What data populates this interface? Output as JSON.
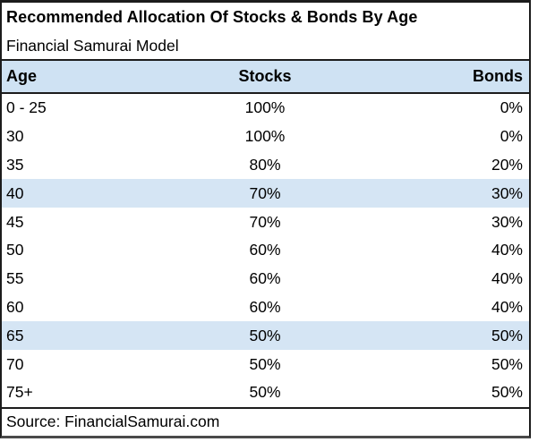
{
  "chart_data": {
    "type": "table",
    "title": "Recommended Allocation Of Stocks & Bonds By Age",
    "subtitle": "Financial Samurai Model",
    "columns": [
      "Age",
      "Stocks",
      "Bonds"
    ],
    "rows": [
      {
        "age": "0 - 25",
        "stocks": "100%",
        "bonds": "0%",
        "highlighted": false
      },
      {
        "age": "30",
        "stocks": "100%",
        "bonds": "0%",
        "highlighted": false
      },
      {
        "age": "35",
        "stocks": "80%",
        "bonds": "20%",
        "highlighted": false
      },
      {
        "age": "40",
        "stocks": "70%",
        "bonds": "30%",
        "highlighted": true
      },
      {
        "age": "45",
        "stocks": "70%",
        "bonds": "30%",
        "highlighted": false
      },
      {
        "age": "50",
        "stocks": "60%",
        "bonds": "40%",
        "highlighted": false
      },
      {
        "age": "55",
        "stocks": "60%",
        "bonds": "40%",
        "highlighted": false
      },
      {
        "age": "60",
        "stocks": "60%",
        "bonds": "40%",
        "highlighted": false
      },
      {
        "age": "65",
        "stocks": "50%",
        "bonds": "50%",
        "highlighted": true
      },
      {
        "age": "70",
        "stocks": "50%",
        "bonds": "50%",
        "highlighted": false
      },
      {
        "age": "75+",
        "stocks": "50%",
        "bonds": "50%",
        "highlighted": false
      }
    ],
    "highlighted_ages": [
      "40",
      "65"
    ],
    "source": "Source: FinancialSamurai.com"
  },
  "colors": {
    "header_bg": "#cfe2f3",
    "highlight_row_bg": "#d5e5f4",
    "border": "#1c1c1c",
    "bottom_border": "#4a4a4a",
    "text": "#000000",
    "background": "#ffffff"
  }
}
